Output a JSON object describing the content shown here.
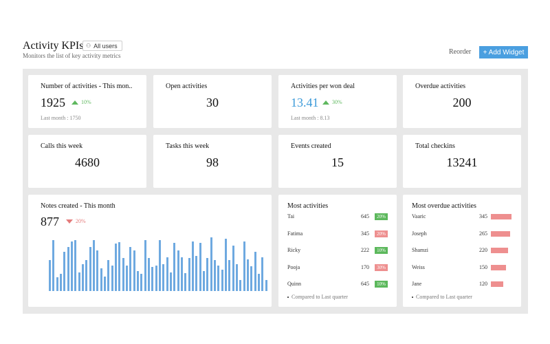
{
  "header": {
    "title": "Activity KPIs",
    "filter_label": "All users",
    "subtitle": "Monitors the list of key activity metrics",
    "reorder_label": "Reorder",
    "add_widget_label": "+ Add Widget"
  },
  "kpis": {
    "activities_month": {
      "title": "Number of activities - This mon..",
      "value": "1925",
      "trend": "10%",
      "last": "Last month : 1750"
    },
    "open_activities": {
      "title": "Open activities",
      "value": "30"
    },
    "per_won_deal": {
      "title": "Activities per won deal",
      "value": "13.41",
      "trend": "30%",
      "last": "Last month : 8.13"
    },
    "overdue": {
      "title": "Overdue activities",
      "value": "200"
    },
    "calls_week": {
      "title": "Calls this week",
      "value": "4680"
    },
    "tasks_week": {
      "title": "Tasks this week",
      "value": "98"
    },
    "events_created": {
      "title": "Events created",
      "value": "15"
    },
    "total_checkins": {
      "title": "Total checkins",
      "value": "13241"
    }
  },
  "notes_card": {
    "title": "Notes created - This month",
    "value": "877",
    "trend": "20%",
    "chart_color": "#6ea9e0",
    "chart_values": [
      55,
      90,
      24,
      30,
      70,
      78,
      88,
      90,
      33,
      48,
      55,
      78,
      90,
      72,
      40,
      25,
      55,
      45,
      84,
      87,
      58,
      45,
      78,
      72,
      35,
      30,
      90,
      58,
      43,
      45,
      90,
      48,
      60,
      33,
      85,
      72,
      60,
      32,
      58,
      88,
      62,
      85,
      35,
      58,
      95,
      55,
      45,
      38,
      92,
      55,
      80,
      48,
      20,
      88,
      56,
      44,
      70,
      30,
      60,
      20
    ]
  },
  "most_activities": {
    "title": "Most activities",
    "rows": [
      {
        "name": "Tai",
        "value": "645",
        "badge": "20%",
        "color": "#5cb85c"
      },
      {
        "name": "Fatima",
        "value": "345",
        "badge": "20%",
        "color": "#ee8f8f"
      },
      {
        "name": "Ricky",
        "value": "222",
        "badge": "10%",
        "color": "#5cb85c"
      },
      {
        "name": "Pooja",
        "value": "170",
        "badge": "30%",
        "color": "#ee8f8f"
      },
      {
        "name": "Quinn",
        "value": "645",
        "badge": "10%",
        "color": "#5cb85c"
      }
    ],
    "note": "Compared to Last quarter"
  },
  "most_overdue": {
    "title": "Most overdue activities",
    "rows": [
      {
        "name": "Vaaric",
        "value": "345",
        "level": 1.0
      },
      {
        "name": "Joseph",
        "value": "265",
        "level": 0.93
      },
      {
        "name": "Shamzi",
        "value": "220",
        "level": 0.82
      },
      {
        "name": "Weiss",
        "value": "150",
        "level": 0.72
      },
      {
        "name": "Jane",
        "value": "120",
        "level": 0.6
      }
    ],
    "note": "Compared to Last quarter",
    "bar_color": "#ee8f8f"
  },
  "colors": {
    "accent": "#4a9fe0",
    "positive": "#5fb85f",
    "negative": "#e47b7b"
  }
}
